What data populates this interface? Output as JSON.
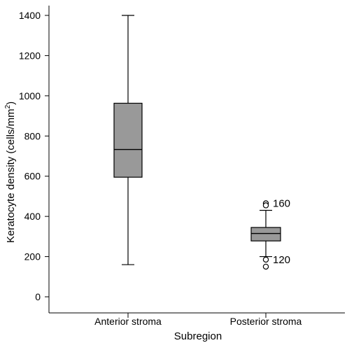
{
  "chart_data": {
    "type": "boxplot",
    "xlabel": "Subregion",
    "ylabel": "Keratocyte density (cells/mm",
    "ylabel_sup": "2",
    "ylabel_close": ")",
    "ylim": [
      -40,
      1460
    ],
    "yticks": [
      0,
      200,
      400,
      600,
      800,
      1000,
      1200,
      1400
    ],
    "ytick_labels": [
      "0",
      "200",
      "400",
      "600",
      "800",
      "1000",
      "1200",
      "1400"
    ],
    "grid": false,
    "categories": [
      "Anterior stroma",
      "Posterior stroma"
    ],
    "boxes": [
      {
        "category": "Anterior stroma",
        "whisker_low": 160,
        "q1": 595,
        "median": 733,
        "q3": 963,
        "whisker_high": 1400,
        "outliers": []
      },
      {
        "category": "Posterior stroma",
        "whisker_low": 200,
        "q1": 278,
        "median": 315,
        "q3": 345,
        "whisker_high": 430,
        "outliers": [
          {
            "value": 465,
            "label": "160"
          },
          {
            "value": 455,
            "label": ""
          },
          {
            "value": 185,
            "label": "120"
          },
          {
            "value": 150,
            "label": ""
          }
        ]
      }
    ],
    "colors": {
      "box_fill": "#999999",
      "stroke": "#000000"
    }
  }
}
